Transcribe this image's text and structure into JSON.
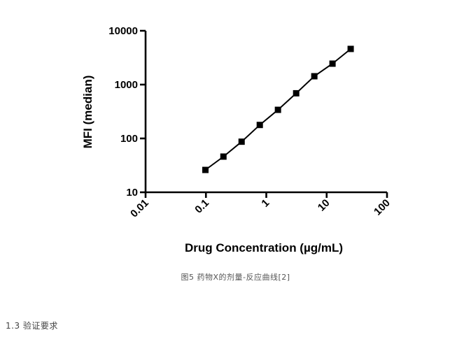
{
  "chart_data": {
    "type": "line",
    "title": "",
    "xlabel": "Drug Concentration (µg/mL)",
    "ylabel": "MFI (median)",
    "xscale": "log",
    "yscale": "log",
    "xlim": [
      0.01,
      100
    ],
    "ylim": [
      10,
      10000
    ],
    "x_tick_labels": [
      "0.01",
      "0.1",
      "1",
      "10",
      "100"
    ],
    "x_tick_values": [
      0.01,
      0.1,
      1,
      10,
      100
    ],
    "y_tick_labels": [
      "10",
      "100",
      "1000",
      "10000"
    ],
    "y_tick_values": [
      10,
      100,
      1000,
      10000
    ],
    "grid": false,
    "legend": "none",
    "marker": "square",
    "color": "#000000",
    "series": [
      {
        "x": [
          0.098,
          0.195,
          0.39,
          0.78,
          1.56,
          3.125,
          6.25,
          12.5,
          25
        ],
        "y": [
          26,
          46,
          87,
          178,
          340,
          690,
          1430,
          2450,
          4600
        ]
      }
    ]
  },
  "caption": "图5 药物X的剂量-反应曲线[2]",
  "section_heading": "1.3 验证要求"
}
